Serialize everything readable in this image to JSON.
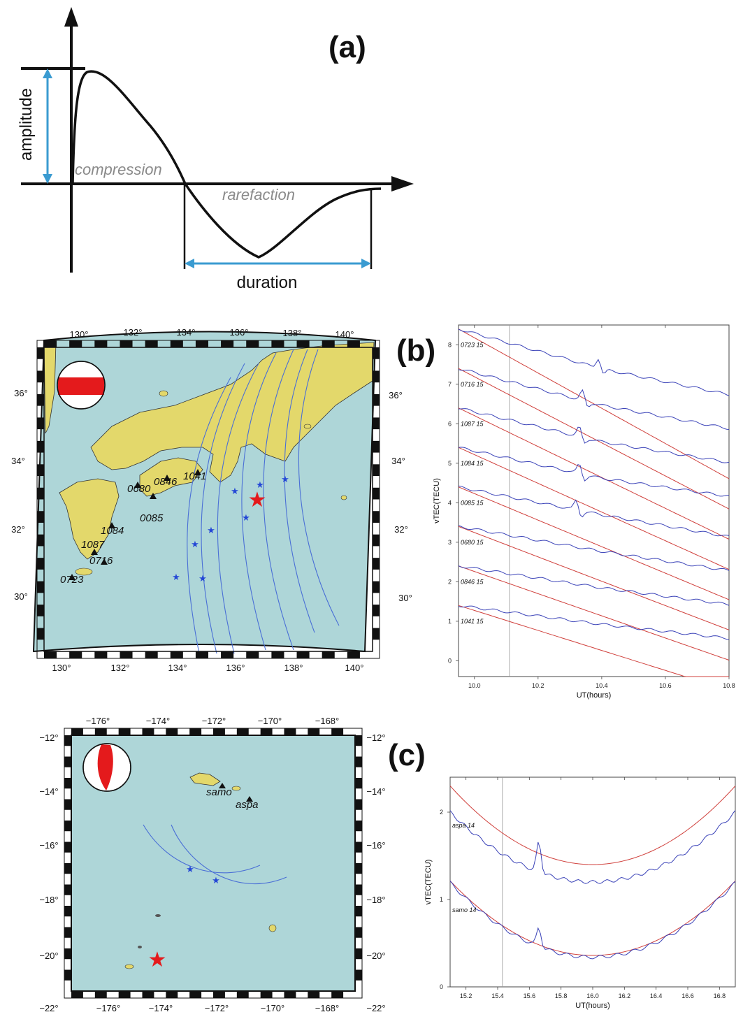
{
  "panel_a": {
    "label": "(a)",
    "amplitude_label": "amplitude",
    "compression_label": "compression",
    "rarefaction_label": "rarefaction",
    "duration_label": "duration",
    "arrow_color": "#3a9bd1"
  },
  "panel_b": {
    "label": "(b)",
    "map": {
      "lon_ticks": [
        "130°",
        "132°",
        "134°",
        "136°",
        "138°",
        "140°"
      ],
      "lat_ticks": [
        "30°",
        "32°",
        "34°",
        "36°"
      ],
      "stations": [
        "0680",
        "0846",
        "1041",
        "0085",
        "1084",
        "1087",
        "0716",
        "0723"
      ],
      "sea_color": "#aed6d8",
      "land_color": "#e3d86b",
      "epicenter_color": "#e41a1c",
      "track_color": "#4a6fd6"
    },
    "chart_data": {
      "type": "line",
      "x_label": "UT(hours)",
      "y_label": "vTEC(TECU)",
      "xlim": [
        9.95,
        10.8
      ],
      "ylim": [
        -0.4,
        8.5
      ],
      "x_ticks": [
        "10.0",
        "10.2",
        "10.4",
        "10.6",
        "10.8"
      ],
      "y_ticks": [
        "0",
        "1",
        "2",
        "3",
        "4",
        "5",
        "6",
        "7",
        "8"
      ],
      "event_time": 10.11,
      "series_labels": [
        "0723 15",
        "0716 15",
        "1087 15",
        "1084 15",
        "0085 15",
        "0680 15",
        "0846 15",
        "1041 15"
      ],
      "observed_color": "#3b43b8",
      "model_color": "#d0403c"
    }
  },
  "panel_c": {
    "label": "(c)",
    "map": {
      "lon_ticks": [
        "−176°",
        "−174°",
        "−172°",
        "−170°",
        "−168°"
      ],
      "lat_ticks": [
        "−12°",
        "−14°",
        "−16°",
        "−18°",
        "−20°",
        "−22°"
      ],
      "stations": [
        "samo",
        "aspa"
      ]
    },
    "chart_data": {
      "type": "line",
      "x_label": "UT(hours)",
      "y_label": "vTEC(TECU)",
      "xlim": [
        15.1,
        16.9
      ],
      "ylim": [
        0,
        2.4
      ],
      "x_ticks": [
        "15.2",
        "15.4",
        "15.6",
        "15.8",
        "16.0",
        "16.2",
        "16.4",
        "16.6",
        "16.8"
      ],
      "y_ticks": [
        "0",
        "1",
        "2"
      ],
      "event_time": 15.43,
      "series_labels": [
        "aspa 14",
        "samo 14"
      ]
    }
  }
}
